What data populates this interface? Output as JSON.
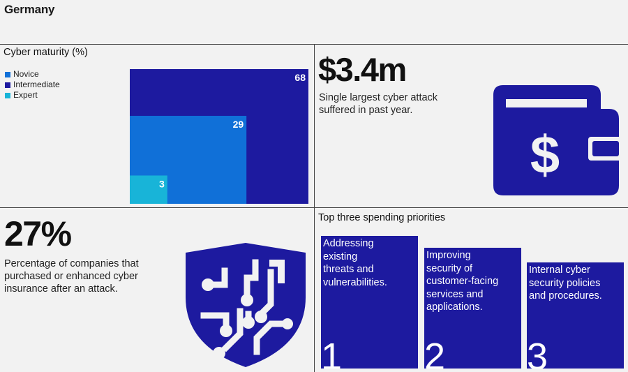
{
  "country": "Germany",
  "maturity": {
    "title": "Cyber maturity (%)",
    "legend": [
      {
        "label": "Novice",
        "color": "#1070d8"
      },
      {
        "label": "Intermediate",
        "color": "#1d1a9f"
      },
      {
        "label": "Expert",
        "color": "#18b4d8"
      }
    ]
  },
  "chart_data": {
    "type": "nested-area",
    "title": "Cyber maturity (%)",
    "categories": [
      "Intermediate",
      "Novice",
      "Expert"
    ],
    "values": [
      68,
      29,
      3
    ],
    "colors": [
      "#1d1a9f",
      "#1070d8",
      "#18b4d8"
    ],
    "labels": [
      "68",
      "29",
      "3"
    ],
    "legend_placement": "top-left"
  },
  "attack": {
    "value": "$3.4m",
    "description_line1": "Single largest cyber attack",
    "description_line2": "suffered in past year."
  },
  "insurance": {
    "value": "27%",
    "description_line1": "Percentage of companies that",
    "description_line2": "purchased or enhanced cyber",
    "description_line3": "insurance after an attack."
  },
  "priorities": {
    "title": "Top three spending priorities",
    "items": [
      {
        "number": "1",
        "lines": [
          "Addressing",
          "existing",
          "threats and",
          "vulnerabilities."
        ]
      },
      {
        "number": "2",
        "lines": [
          "Improving",
          "security of",
          "customer-facing",
          "services and",
          "applications."
        ]
      },
      {
        "number": "3",
        "lines": [
          "Internal cyber",
          "security policies",
          "and procedures."
        ]
      }
    ]
  },
  "icons": {
    "wallet": "wallet-dollar-icon",
    "shield": "circuit-shield-icon"
  },
  "accent_color": "#1d1a9f"
}
